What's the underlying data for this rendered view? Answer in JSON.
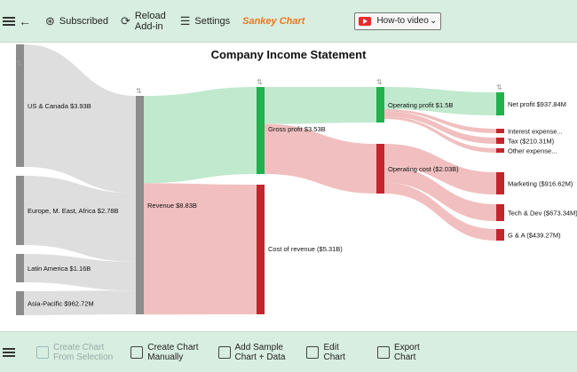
{
  "toolbar": {
    "subscribed_label": "Subscribed",
    "reload_line1": "Reload",
    "reload_line2": "Add-in",
    "settings_label": "Settings",
    "brand_label": "Sankey Chart",
    "video_label": "How-to video"
  },
  "bottom_toolbar": {
    "create_from_selection_line1": "Create Chart",
    "create_from_selection_line2": "From Selection",
    "create_manually_line1": "Create Chart",
    "create_manually_line2": "Manually",
    "add_sample_line1": "Add Sample",
    "add_sample_line2": "Chart + Data",
    "edit_line1": "Edit",
    "edit_line2": "Chart",
    "export_line1": "Export",
    "export_line2": "Chart"
  },
  "colors": {
    "toolbar_bg": "#d8eee0",
    "gray_node": "#8c8c8c",
    "green_node": "#22b14c",
    "red_node": "#c1272d",
    "green_link": "#bde8cb",
    "red_link": "#f0bcbc",
    "gray_link": "#dcdcdc"
  },
  "chart_data": {
    "type": "sankey",
    "title": "Company Income Statement",
    "nodes": [
      {
        "id": "us",
        "label": "US & Canada $3.93B",
        "value": 3.93,
        "color": "gray"
      },
      {
        "id": "eu",
        "label": "Europe, M. East, Africa $2.78B",
        "value": 2.78,
        "color": "gray"
      },
      {
        "id": "la",
        "label": "Latin America $1.16B",
        "value": 1.16,
        "color": "gray"
      },
      {
        "id": "ap",
        "label": "Asia-Pacific $962.72M",
        "value": 0.96272,
        "color": "gray"
      },
      {
        "id": "rev",
        "label": "Revenue $8.83B",
        "value": 8.83,
        "color": "gray"
      },
      {
        "id": "gp",
        "label": "Gross profit $3.53B",
        "value": 3.53,
        "color": "green"
      },
      {
        "id": "cor",
        "label": "Cost of revenue ($5.31B)",
        "value": 5.31,
        "color": "red"
      },
      {
        "id": "op",
        "label": "Operating profit $1.5B",
        "value": 1.5,
        "color": "green"
      },
      {
        "id": "oc",
        "label": "Operating cost ($2.03B)",
        "value": 2.03,
        "color": "red"
      },
      {
        "id": "np",
        "label": "Net profit $937.84M",
        "value": 0.93784,
        "color": "green"
      },
      {
        "id": "int",
        "label": "Interest expense...",
        "value": 0.1,
        "color": "red"
      },
      {
        "id": "tax",
        "label": "Tax ($210.31M)",
        "value": 0.21031,
        "color": "red"
      },
      {
        "id": "oth",
        "label": "Other expense...",
        "value": 0.1,
        "color": "red"
      },
      {
        "id": "mkt",
        "label": "Marketing ($916.62M)",
        "value": 0.91662,
        "color": "red"
      },
      {
        "id": "tech",
        "label": "Tech & Dev ($673.34M)",
        "value": 0.67334,
        "color": "red"
      },
      {
        "id": "ga",
        "label": "G & A ($439.27M)",
        "value": 0.43927,
        "color": "red"
      }
    ],
    "links": [
      {
        "source": "us",
        "target": "rev",
        "value": 3.93,
        "color": "gray"
      },
      {
        "source": "eu",
        "target": "rev",
        "value": 2.78,
        "color": "gray"
      },
      {
        "source": "la",
        "target": "rev",
        "value": 1.16,
        "color": "gray"
      },
      {
        "source": "ap",
        "target": "rev",
        "value": 0.96272,
        "color": "gray"
      },
      {
        "source": "rev",
        "target": "gp",
        "value": 3.53,
        "color": "green"
      },
      {
        "source": "rev",
        "target": "cor",
        "value": 5.31,
        "color": "red"
      },
      {
        "source": "gp",
        "target": "op",
        "value": 1.5,
        "color": "green"
      },
      {
        "source": "gp",
        "target": "oc",
        "value": 2.03,
        "color": "red"
      },
      {
        "source": "op",
        "target": "np",
        "value": 0.93784,
        "color": "green"
      },
      {
        "source": "op",
        "target": "int",
        "value": 0.1,
        "color": "red"
      },
      {
        "source": "op",
        "target": "tax",
        "value": 0.21031,
        "color": "red"
      },
      {
        "source": "op",
        "target": "oth",
        "value": 0.1,
        "color": "red"
      },
      {
        "source": "oc",
        "target": "mkt",
        "value": 0.91662,
        "color": "red"
      },
      {
        "source": "oc",
        "target": "tech",
        "value": 0.67334,
        "color": "red"
      },
      {
        "source": "oc",
        "target": "ga",
        "value": 0.43927,
        "color": "red"
      }
    ]
  }
}
